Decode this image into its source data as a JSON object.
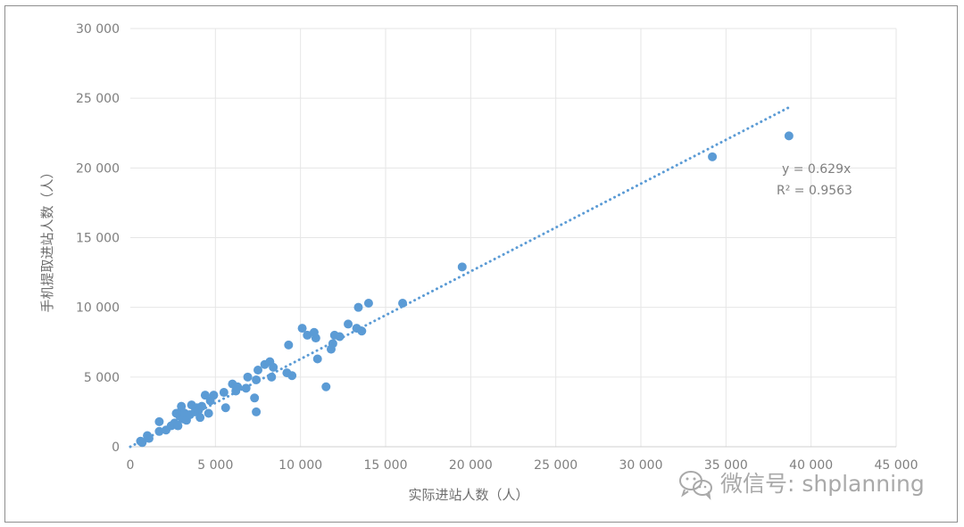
{
  "chart_data": {
    "type": "scatter",
    "title": "",
    "xlabel": "实际进站人数（人）",
    "ylabel": "手机提取进站人数（人）",
    "xlim": [
      0,
      45000
    ],
    "ylim": [
      0,
      30000
    ],
    "x_ticks": [
      {
        "value": 0,
        "label": "0"
      },
      {
        "value": 5000,
        "label": "5 000"
      },
      {
        "value": 10000,
        "label": "10 000"
      },
      {
        "value": 15000,
        "label": "15 000"
      },
      {
        "value": 20000,
        "label": "20 000"
      },
      {
        "value": 25000,
        "label": "25 000"
      },
      {
        "value": 30000,
        "label": "30 000"
      },
      {
        "value": 35000,
        "label": "35 000"
      },
      {
        "value": 40000,
        "label": "40 000"
      },
      {
        "value": 45000,
        "label": "45 000"
      }
    ],
    "y_ticks": [
      {
        "value": 0,
        "label": "0"
      },
      {
        "value": 5000,
        "label": "5 000"
      },
      {
        "value": 10000,
        "label": "10 000"
      },
      {
        "value": 15000,
        "label": "15 000"
      },
      {
        "value": 20000,
        "label": "20 000"
      },
      {
        "value": 25000,
        "label": "25 000"
      },
      {
        "value": 30000,
        "label": "30 000"
      }
    ],
    "grid": "horizontal and vertical",
    "series": [
      {
        "color": "#5b9bd5",
        "points": [
          [
            600,
            400
          ],
          [
            700,
            300
          ],
          [
            1000,
            800
          ],
          [
            1100,
            600
          ],
          [
            1700,
            1100
          ],
          [
            1700,
            1800
          ],
          [
            2100,
            1200
          ],
          [
            2400,
            1500
          ],
          [
            2600,
            1700
          ],
          [
            2700,
            2400
          ],
          [
            2800,
            1500
          ],
          [
            2900,
            2200
          ],
          [
            3000,
            2600
          ],
          [
            3000,
            2900
          ],
          [
            3100,
            2000
          ],
          [
            3200,
            2400
          ],
          [
            3300,
            1900
          ],
          [
            3500,
            2300
          ],
          [
            3600,
            3000
          ],
          [
            3800,
            2500
          ],
          [
            3900,
            2800
          ],
          [
            4000,
            2600
          ],
          [
            4100,
            2100
          ],
          [
            4200,
            2900
          ],
          [
            4400,
            3700
          ],
          [
            4600,
            2400
          ],
          [
            4700,
            3300
          ],
          [
            4900,
            3700
          ],
          [
            5500,
            3900
          ],
          [
            5600,
            2800
          ],
          [
            6000,
            4500
          ],
          [
            6200,
            4000
          ],
          [
            6300,
            4300
          ],
          [
            6800,
            4200
          ],
          [
            6900,
            5000
          ],
          [
            7300,
            3500
          ],
          [
            7400,
            4800
          ],
          [
            7400,
            2500
          ],
          [
            7500,
            5500
          ],
          [
            7900,
            5900
          ],
          [
            8200,
            6100
          ],
          [
            8300,
            5000
          ],
          [
            8400,
            5700
          ],
          [
            9200,
            5300
          ],
          [
            9300,
            7300
          ],
          [
            9500,
            5100
          ],
          [
            10100,
            8500
          ],
          [
            10400,
            8000
          ],
          [
            10800,
            8200
          ],
          [
            10900,
            7800
          ],
          [
            11000,
            6300
          ],
          [
            11500,
            4300
          ],
          [
            11800,
            7000
          ],
          [
            11900,
            7400
          ],
          [
            12000,
            8000
          ],
          [
            12300,
            7900
          ],
          [
            12800,
            8800
          ],
          [
            13300,
            8500
          ],
          [
            13400,
            10000
          ],
          [
            13600,
            8300
          ],
          [
            14000,
            10300
          ],
          [
            16000,
            10300
          ],
          [
            19500,
            12900
          ],
          [
            34200,
            20800
          ],
          [
            38700,
            22300
          ]
        ]
      }
    ],
    "trendline": {
      "type": "linear",
      "slope": 0.629,
      "intercept": 0,
      "x_range": [
        0,
        38700
      ],
      "color": "#5b9bd5",
      "style": "dotted"
    },
    "annotations": [
      "y = 0.629x",
      "R² = 0.9563"
    ],
    "legend": "none"
  },
  "watermark": {
    "text": "微信号: shplanning",
    "icon": "wechat-icon"
  }
}
